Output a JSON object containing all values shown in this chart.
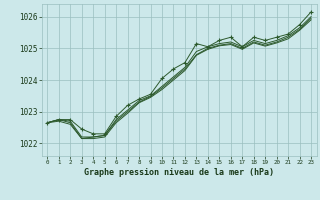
{
  "title": "Graphe pression niveau de la mer (hPa)",
  "background_color": "#cce8ea",
  "plot_bg_color": "#cce8ea",
  "grid_color": "#9bbfbf",
  "line_color": "#2d5a2d",
  "marker_color": "#2d5a2d",
  "text_color": "#1a3a1a",
  "xlim": [
    -0.5,
    23.5
  ],
  "ylim": [
    1021.6,
    1026.4
  ],
  "yticks": [
    1022,
    1023,
    1024,
    1025,
    1026
  ],
  "xticks": [
    0,
    1,
    2,
    3,
    4,
    5,
    6,
    7,
    8,
    9,
    10,
    11,
    12,
    13,
    14,
    15,
    16,
    17,
    18,
    19,
    20,
    21,
    22,
    23
  ],
  "s1": [
    1022.65,
    1022.75,
    1022.75,
    1022.45,
    1022.3,
    1022.3,
    1022.85,
    1023.2,
    1023.4,
    1023.55,
    1024.05,
    1024.35,
    1024.55,
    1025.15,
    1025.05,
    1025.25,
    1025.35,
    1025.05,
    1025.35,
    1025.25,
    1025.35,
    1025.45,
    1025.75,
    1026.15
  ],
  "s2": [
    1022.65,
    1022.75,
    1022.7,
    1022.2,
    1022.2,
    1022.25,
    1022.75,
    1023.05,
    1023.35,
    1023.5,
    1023.8,
    1024.1,
    1024.4,
    1024.9,
    1025.05,
    1025.15,
    1025.2,
    1025.05,
    1025.25,
    1025.15,
    1025.25,
    1025.4,
    1025.65,
    1026.0
  ],
  "s3": [
    1022.65,
    1022.75,
    1022.65,
    1022.15,
    1022.2,
    1022.25,
    1022.7,
    1023.0,
    1023.3,
    1023.48,
    1023.75,
    1024.05,
    1024.35,
    1024.8,
    1025.0,
    1025.1,
    1025.15,
    1025.0,
    1025.2,
    1025.1,
    1025.2,
    1025.35,
    1025.6,
    1025.95
  ],
  "s4": [
    1022.65,
    1022.7,
    1022.6,
    1022.15,
    1022.15,
    1022.2,
    1022.65,
    1022.95,
    1023.28,
    1023.45,
    1023.7,
    1024.0,
    1024.3,
    1024.78,
    1024.97,
    1025.08,
    1025.12,
    1024.97,
    1025.17,
    1025.07,
    1025.17,
    1025.3,
    1025.57,
    1025.9
  ]
}
